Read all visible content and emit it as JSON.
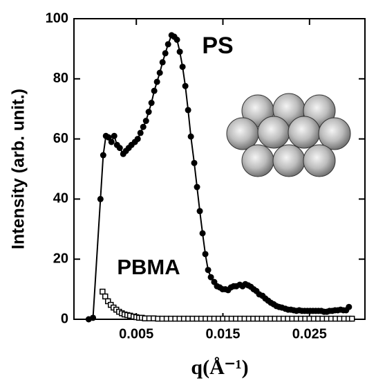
{
  "chart_data": {
    "type": "scatter",
    "xlabel": "q(Å⁻¹)",
    "ylabel": "Intensity (arb. unit.)",
    "xlim": [
      -0.0022,
      0.0314
    ],
    "ylim": [
      0,
      100
    ],
    "xticks": [
      0.005,
      0.015,
      0.025
    ],
    "yticks": [
      0,
      20,
      40,
      60,
      80,
      100
    ],
    "series": [
      {
        "name": "PS",
        "color": "#000000",
        "marker": "circle",
        "line": true,
        "x": [
          -0.0005,
          0.0,
          0.00086,
          0.00118,
          0.00149,
          0.00181,
          0.00213,
          0.00245,
          0.00277,
          0.00309,
          0.00349,
          0.0038,
          0.00412,
          0.00444,
          0.00484,
          0.00516,
          0.00548,
          0.0058,
          0.00612,
          0.00643,
          0.00675,
          0.00707,
          0.00739,
          0.00771,
          0.00803,
          0.00835,
          0.00867,
          0.00907,
          0.00938,
          0.0097,
          0.01002,
          0.01034,
          0.01066,
          0.01098,
          0.0113,
          0.01169,
          0.01201,
          0.01233,
          0.01265,
          0.01297,
          0.01329,
          0.01361,
          0.014,
          0.01432,
          0.01464,
          0.01496,
          0.01528,
          0.0156,
          0.01592,
          0.01624,
          0.01655,
          0.01695,
          0.01727,
          0.01759,
          0.01791,
          0.01823,
          0.01855,
          0.01887,
          0.01919,
          0.01958,
          0.0199,
          0.02022,
          0.02054,
          0.02086,
          0.02118,
          0.02149,
          0.02181,
          0.02221,
          0.02253,
          0.02285,
          0.02317,
          0.02349,
          0.02381,
          0.02413,
          0.02444,
          0.02476,
          0.02508,
          0.0254,
          0.02572,
          0.02604,
          0.02636,
          0.02668,
          0.027,
          0.02731,
          0.02763,
          0.02795,
          0.02827,
          0.02859,
          0.02891,
          0.02923,
          0.02955
        ],
        "values": [
          0,
          0.5,
          40,
          54.6,
          61,
          60.5,
          59,
          61,
          58,
          57,
          55,
          56,
          57,
          58,
          59,
          60,
          62,
          64,
          66,
          69,
          72,
          76,
          79,
          82,
          85.5,
          88.5,
          91.5,
          94.5,
          94,
          93,
          89,
          84,
          77.6,
          69.6,
          60.8,
          52,
          44,
          36,
          28.6,
          21.7,
          16.4,
          14,
          12.4,
          11,
          10.6,
          10,
          10,
          9.7,
          10.6,
          11,
          11,
          11.5,
          11,
          11.7,
          11.3,
          10.8,
          10,
          9.4,
          8.3,
          7.8,
          6.9,
          6.2,
          5.5,
          5,
          4.4,
          4.1,
          3.9,
          3.5,
          3.2,
          3.2,
          3,
          2.8,
          3,
          2.8,
          2.8,
          2.8,
          2.8,
          2.8,
          2.8,
          2.8,
          2.8,
          2.5,
          2.5,
          2.8,
          2.8,
          3,
          3,
          3.2,
          3,
          3,
          4.1
        ]
      },
      {
        "name": "PBMA",
        "color": "#000000",
        "marker": "square",
        "line": false,
        "x": [
          0.0011,
          0.00141,
          0.00173,
          0.00205,
          0.00237,
          0.00269,
          0.00301,
          0.00333,
          0.00364,
          0.00396,
          0.00428,
          0.00468,
          0.005,
          0.00532,
          0.00564,
          0.006,
          0.0065,
          0.007,
          0.0075,
          0.008,
          0.0085,
          0.009,
          0.0095,
          0.01,
          0.0105,
          0.011,
          0.0115,
          0.012,
          0.0125,
          0.013,
          0.0135,
          0.014,
          0.0145,
          0.015,
          0.0155,
          0.016,
          0.0165,
          0.017,
          0.0175,
          0.018,
          0.0185,
          0.019,
          0.0195,
          0.02,
          0.0205,
          0.021,
          0.0215,
          0.022,
          0.0225,
          0.023,
          0.0235,
          0.024,
          0.0245,
          0.025,
          0.0255,
          0.026,
          0.0265,
          0.027,
          0.0275,
          0.028,
          0.0285,
          0.029,
          0.0295,
          0.0299
        ],
        "values": [
          9.2,
          7.6,
          6,
          4.8,
          3.9,
          3.2,
          2.5,
          2,
          1.6,
          1.4,
          1.2,
          0.9,
          0.7,
          0.5,
          0.5,
          0.3,
          0.3,
          0.3,
          0.2,
          0.2,
          0.2,
          0.2,
          0.2,
          0.2,
          0.2,
          0.2,
          0.2,
          0.2,
          0.2,
          0.2,
          0.2,
          0.2,
          0.2,
          0.2,
          0.2,
          0.2,
          0.2,
          0.2,
          0.2,
          0.2,
          0.2,
          0.2,
          0.2,
          0.2,
          0.2,
          0.2,
          0.2,
          0.2,
          0.2,
          0.2,
          0.2,
          0.2,
          0.2,
          0.2,
          0.2,
          0.2,
          0.2,
          0.2,
          0.2,
          0.2,
          0.2,
          0.2,
          0.2,
          0.2
        ]
      }
    ]
  }
}
